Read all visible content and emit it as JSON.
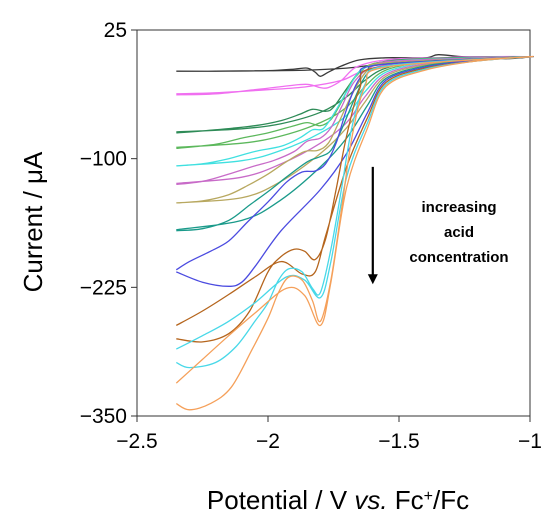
{
  "chart_data": {
    "type": "line",
    "title": "",
    "xlabel_prefix": "Potential / V ",
    "xlabel_italic": "vs.",
    "xlabel_suffix": " Fc",
    "xlabel_sup": "+",
    "xlabel_end": "/Fc",
    "ylabel": "Current / μA",
    "xlim": [
      -2.5,
      -1
    ],
    "ylim": [
      -350,
      25
    ],
    "xticks": [
      -2.5,
      -2,
      -1.5,
      -1
    ],
    "xtick_labels": [
      "−2.5",
      "−2",
      "−1.5",
      "−1"
    ],
    "yticks": [
      25,
      -100,
      -225,
      -350
    ],
    "ytick_labels": [
      "25",
      "−100",
      "−225",
      "−350"
    ],
    "annotation": [
      "increasing",
      "acid",
      "concentration"
    ],
    "arrow": {
      "x": -1.6,
      "y_start": -108,
      "y_end": -222
    },
    "series": [
      {
        "color": "#3a3a3a",
        "points": [
          [
            -2.35,
            -15
          ],
          [
            -2.2,
            -15
          ],
          [
            -2.0,
            -14.5
          ],
          [
            -1.9,
            -13
          ],
          [
            -1.85,
            -12
          ],
          [
            -1.82,
            -16
          ],
          [
            -1.8,
            -20
          ],
          [
            -1.77,
            -16
          ],
          [
            -1.72,
            -10
          ],
          [
            -1.65,
            -4
          ],
          [
            -1.55,
            -2
          ],
          [
            -1.4,
            -2
          ],
          [
            -1.35,
            1
          ],
          [
            -1.25,
            -1
          ],
          [
            -1.1,
            -1
          ],
          [
            -1.0,
            -1
          ],
          [
            -1.1,
            -3
          ],
          [
            -1.3,
            -3
          ],
          [
            -1.5,
            -6
          ],
          [
            -1.6,
            -9
          ],
          [
            -1.7,
            -12
          ],
          [
            -1.85,
            -14
          ],
          [
            -2.0,
            -14.5
          ],
          [
            -2.2,
            -15
          ],
          [
            -2.35,
            -15
          ]
        ]
      },
      {
        "color": "#f06ff0",
        "points": [
          [
            -2.35,
            -38
          ],
          [
            -2.2,
            -37
          ],
          [
            -2.05,
            -33
          ],
          [
            -1.95,
            -30
          ],
          [
            -1.88,
            -28
          ],
          [
            -1.84,
            -28
          ],
          [
            -1.8,
            -31
          ],
          [
            -1.77,
            -31
          ],
          [
            -1.72,
            -24
          ],
          [
            -1.67,
            -12
          ],
          [
            -1.6,
            -6
          ],
          [
            -1.5,
            -3
          ],
          [
            -1.35,
            -2
          ],
          [
            -1.2,
            -1
          ],
          [
            -1.0,
            -1
          ],
          [
            -1.2,
            -3
          ],
          [
            -1.4,
            -4
          ],
          [
            -1.55,
            -9
          ],
          [
            -1.65,
            -16
          ],
          [
            -1.72,
            -24
          ],
          [
            -1.85,
            -30
          ],
          [
            -2.0,
            -33
          ],
          [
            -2.2,
            -36
          ],
          [
            -2.35,
            -37
          ]
        ]
      },
      {
        "color": "#2e8b57",
        "points": [
          [
            -2.35,
            -75
          ],
          [
            -2.2,
            -72
          ],
          [
            -2.05,
            -68
          ],
          [
            -1.95,
            -63
          ],
          [
            -1.88,
            -57
          ],
          [
            -1.83,
            -52
          ],
          [
            -1.78,
            -54
          ],
          [
            -1.75,
            -50
          ],
          [
            -1.7,
            -32
          ],
          [
            -1.65,
            -15
          ],
          [
            -1.6,
            -8
          ],
          [
            -1.5,
            -4
          ],
          [
            -1.3,
            -2
          ],
          [
            -1.0,
            -1
          ],
          [
            -1.2,
            -3
          ],
          [
            -1.4,
            -5
          ],
          [
            -1.55,
            -12
          ],
          [
            -1.63,
            -24
          ],
          [
            -1.7,
            -40
          ],
          [
            -1.8,
            -55
          ],
          [
            -1.95,
            -66
          ],
          [
            -2.1,
            -71
          ],
          [
            -2.35,
            -74
          ]
        ]
      },
      {
        "color": "#5cb85c",
        "points": [
          [
            -2.35,
            -90
          ],
          [
            -2.2,
            -86
          ],
          [
            -2.1,
            -80
          ],
          [
            -2.0,
            -75
          ],
          [
            -1.9,
            -68
          ],
          [
            -1.85,
            -65
          ],
          [
            -1.8,
            -68
          ],
          [
            -1.76,
            -62
          ],
          [
            -1.72,
            -45
          ],
          [
            -1.68,
            -25
          ],
          [
            -1.62,
            -10
          ],
          [
            -1.55,
            -6
          ],
          [
            -1.4,
            -3
          ],
          [
            -1.0,
            -1
          ],
          [
            -1.2,
            -3
          ],
          [
            -1.4,
            -6
          ],
          [
            -1.55,
            -14
          ],
          [
            -1.63,
            -30
          ],
          [
            -1.7,
            -50
          ],
          [
            -1.8,
            -65
          ],
          [
            -1.95,
            -78
          ],
          [
            -2.1,
            -85
          ],
          [
            -2.35,
            -89
          ]
        ]
      },
      {
        "color": "#40e0e0",
        "points": [
          [
            -2.35,
            -107
          ],
          [
            -2.25,
            -105
          ],
          [
            -2.15,
            -100
          ],
          [
            -2.05,
            -93
          ],
          [
            -1.95,
            -88
          ],
          [
            -1.88,
            -80
          ],
          [
            -1.83,
            -72
          ],
          [
            -1.79,
            -71
          ],
          [
            -1.75,
            -57
          ],
          [
            -1.7,
            -35
          ],
          [
            -1.65,
            -15
          ],
          [
            -1.58,
            -8
          ],
          [
            -1.45,
            -4
          ],
          [
            -1.0,
            -1
          ],
          [
            -1.2,
            -3
          ],
          [
            -1.4,
            -7
          ],
          [
            -1.55,
            -16
          ],
          [
            -1.63,
            -35
          ],
          [
            -1.7,
            -58
          ],
          [
            -1.8,
            -75
          ],
          [
            -1.95,
            -92
          ],
          [
            -2.1,
            -102
          ],
          [
            -2.35,
            -107
          ]
        ]
      },
      {
        "color": "#c86bc8",
        "points": [
          [
            -2.35,
            -125
          ],
          [
            -2.25,
            -122
          ],
          [
            -2.15,
            -115
          ],
          [
            -2.05,
            -107
          ],
          [
            -1.98,
            -102
          ],
          [
            -1.9,
            -93
          ],
          [
            -1.85,
            -83
          ],
          [
            -1.8,
            -80
          ],
          [
            -1.76,
            -70
          ],
          [
            -1.72,
            -50
          ],
          [
            -1.67,
            -25
          ],
          [
            -1.6,
            -10
          ],
          [
            -1.5,
            -5
          ],
          [
            -1.0,
            -1
          ],
          [
            -1.2,
            -4
          ],
          [
            -1.4,
            -8
          ],
          [
            -1.55,
            -18
          ],
          [
            -1.63,
            -40
          ],
          [
            -1.7,
            -65
          ],
          [
            -1.8,
            -85
          ],
          [
            -1.95,
            -105
          ],
          [
            -2.1,
            -118
          ],
          [
            -2.35,
            -124
          ]
        ]
      },
      {
        "color": "#b8a860",
        "points": [
          [
            -2.35,
            -143
          ],
          [
            -2.25,
            -141
          ],
          [
            -2.15,
            -135
          ],
          [
            -2.07,
            -125
          ],
          [
            -2.0,
            -115
          ],
          [
            -1.93,
            -103
          ],
          [
            -1.86,
            -93
          ],
          [
            -1.81,
            -92
          ],
          [
            -1.77,
            -85
          ],
          [
            -1.73,
            -65
          ],
          [
            -1.68,
            -38
          ],
          [
            -1.62,
            -14
          ],
          [
            -1.55,
            -7
          ],
          [
            -1.0,
            -1
          ],
          [
            -1.2,
            -4
          ],
          [
            -1.4,
            -9
          ],
          [
            -1.55,
            -20
          ],
          [
            -1.63,
            -45
          ],
          [
            -1.7,
            -70
          ],
          [
            -1.8,
            -95
          ],
          [
            -1.95,
            -122
          ],
          [
            -2.1,
            -138
          ],
          [
            -2.35,
            -143
          ]
        ]
      },
      {
        "color": "#1a9a8a",
        "points": [
          [
            -2.35,
            -170
          ],
          [
            -2.25,
            -168
          ],
          [
            -2.15,
            -160
          ],
          [
            -2.07,
            -145
          ],
          [
            -2.0,
            -132
          ],
          [
            -1.93,
            -118
          ],
          [
            -1.85,
            -103
          ],
          [
            -1.8,
            -98
          ],
          [
            -1.76,
            -92
          ],
          [
            -1.72,
            -72
          ],
          [
            -1.67,
            -42
          ],
          [
            -1.62,
            -17
          ],
          [
            -1.55,
            -8
          ],
          [
            -1.0,
            -1
          ],
          [
            -1.2,
            -4
          ],
          [
            -1.4,
            -10
          ],
          [
            -1.55,
            -22
          ],
          [
            -1.62,
            -48
          ],
          [
            -1.7,
            -80
          ],
          [
            -1.8,
            -108
          ],
          [
            -1.95,
            -140
          ],
          [
            -2.1,
            -160
          ],
          [
            -2.35,
            -169
          ]
        ]
      },
      {
        "color": "#4b4be0",
        "points": [
          [
            -2.35,
            -208
          ],
          [
            -2.3,
            -200
          ],
          [
            -2.22,
            -190
          ],
          [
            -2.15,
            -180
          ],
          [
            -2.08,
            -162
          ],
          [
            -2.0,
            -142
          ],
          [
            -1.93,
            -123
          ],
          [
            -1.87,
            -113
          ],
          [
            -1.82,
            -112
          ],
          [
            -1.78,
            -105
          ],
          [
            -1.74,
            -85
          ],
          [
            -1.7,
            -52
          ],
          [
            -1.65,
            -22
          ],
          [
            -1.58,
            -9
          ],
          [
            -1.0,
            -1
          ],
          [
            -1.2,
            -4
          ],
          [
            -1.4,
            -11
          ],
          [
            -1.55,
            -24
          ],
          [
            -1.62,
            -55
          ],
          [
            -1.7,
            -95
          ],
          [
            -1.8,
            -130
          ],
          [
            -1.95,
            -170
          ],
          [
            -2.05,
            -205
          ],
          [
            -2.1,
            -220
          ],
          [
            -2.15,
            -224
          ],
          [
            -2.25,
            -220
          ],
          [
            -2.35,
            -210
          ]
        ]
      },
      {
        "color": "#b5651d",
        "points": [
          [
            -2.35,
            -275
          ],
          [
            -2.25,
            -278
          ],
          [
            -2.15,
            -270
          ],
          [
            -2.07,
            -248
          ],
          [
            -2.0,
            -210
          ],
          [
            -1.95,
            -195
          ],
          [
            -1.9,
            -188
          ],
          [
            -1.86,
            -190
          ],
          [
            -1.82,
            -198
          ],
          [
            -1.78,
            -178
          ],
          [
            -1.74,
            -130
          ],
          [
            -1.7,
            -78
          ],
          [
            -1.65,
            -32
          ],
          [
            -1.58,
            -11
          ],
          [
            -1.0,
            -1
          ],
          [
            -1.2,
            -5
          ],
          [
            -1.4,
            -12
          ],
          [
            -1.55,
            -26
          ],
          [
            -1.62,
            -60
          ],
          [
            -1.7,
            -108
          ],
          [
            -1.78,
            -175
          ],
          [
            -1.82,
            -210
          ],
          [
            -1.87,
            -212
          ],
          [
            -1.95,
            -200
          ],
          [
            -2.05,
            -215
          ],
          [
            -2.15,
            -232
          ],
          [
            -2.25,
            -248
          ],
          [
            -2.35,
            -262
          ]
        ]
      },
      {
        "color": "#48d8e8",
        "points": [
          [
            -2.35,
            -298
          ],
          [
            -2.3,
            -303
          ],
          [
            -2.2,
            -298
          ],
          [
            -2.12,
            -282
          ],
          [
            -2.05,
            -258
          ],
          [
            -2.0,
            -240
          ],
          [
            -1.96,
            -218
          ],
          [
            -1.92,
            -207
          ],
          [
            -1.87,
            -210
          ],
          [
            -1.83,
            -226
          ],
          [
            -1.8,
            -230
          ],
          [
            -1.76,
            -188
          ],
          [
            -1.72,
            -130
          ],
          [
            -1.68,
            -70
          ],
          [
            -1.63,
            -28
          ],
          [
            -1.55,
            -10
          ],
          [
            -1.0,
            -1
          ],
          [
            -1.2,
            -5
          ],
          [
            -1.4,
            -13
          ],
          [
            -1.55,
            -28
          ],
          [
            -1.62,
            -65
          ],
          [
            -1.7,
            -118
          ],
          [
            -1.76,
            -200
          ],
          [
            -1.8,
            -235
          ],
          [
            -1.86,
            -218
          ],
          [
            -1.93,
            -215
          ],
          [
            -2.05,
            -240
          ],
          [
            -2.15,
            -258
          ],
          [
            -2.25,
            -272
          ],
          [
            -2.35,
            -285
          ]
        ]
      },
      {
        "color": "#f5a05a",
        "points": [
          [
            -2.35,
            -338
          ],
          [
            -2.3,
            -344
          ],
          [
            -2.22,
            -338
          ],
          [
            -2.14,
            -322
          ],
          [
            -2.06,
            -285
          ],
          [
            -2.0,
            -255
          ],
          [
            -1.96,
            -230
          ],
          [
            -1.92,
            -215
          ],
          [
            -1.87,
            -218
          ],
          [
            -1.83,
            -238
          ],
          [
            -1.8,
            -258
          ],
          [
            -1.76,
            -218
          ],
          [
            -1.72,
            -150
          ],
          [
            -1.68,
            -80
          ],
          [
            -1.63,
            -30
          ],
          [
            -1.55,
            -11
          ],
          [
            -1.0,
            -1
          ],
          [
            -1.2,
            -5
          ],
          [
            -1.4,
            -14
          ],
          [
            -1.55,
            -30
          ],
          [
            -1.62,
            -70
          ],
          [
            -1.7,
            -128
          ],
          [
            -1.76,
            -220
          ],
          [
            -1.8,
            -262
          ],
          [
            -1.86,
            -233
          ],
          [
            -1.93,
            -226
          ],
          [
            -2.05,
            -250
          ],
          [
            -2.15,
            -272
          ],
          [
            -2.25,
            -295
          ],
          [
            -2.35,
            -318
          ]
        ]
      }
    ]
  }
}
